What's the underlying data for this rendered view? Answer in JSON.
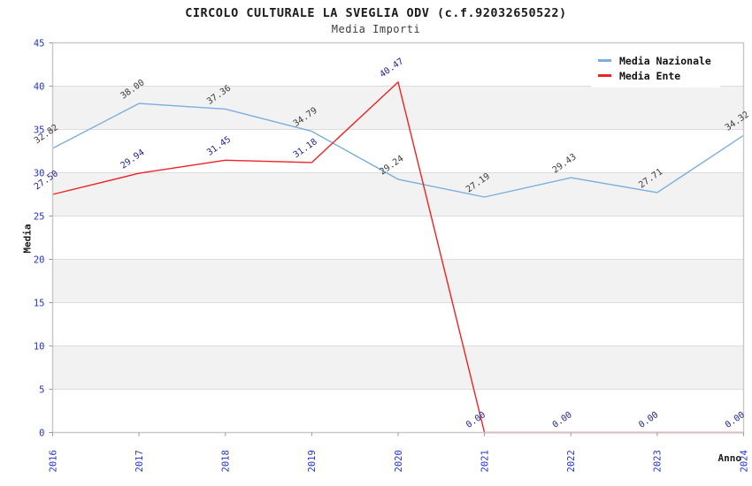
{
  "title": "CIRCOLO CULTURALE LA SVEGLIA ODV (c.f.92032650522)",
  "subtitle": "Media Importi",
  "legend": {
    "items": [
      {
        "label": "Media Nazionale",
        "color": "#7aaede"
      },
      {
        "label": "Media Ente",
        "color": "#ee2222"
      }
    ]
  },
  "chart_data": {
    "type": "line",
    "title": "CIRCOLO CULTURALE LA SVEGLIA ODV (c.f.92032650522)",
    "subtitle": "Media Importi",
    "xlabel": "Anno",
    "ylabel": "Media",
    "x": [
      2016,
      2017,
      2018,
      2019,
      2020,
      2021,
      2022,
      2023,
      2024
    ],
    "series": [
      {
        "name": "Media Nazionale",
        "color": "#7aaede",
        "label_color": "#3a3a3a",
        "values": [
          32.82,
          38.0,
          37.36,
          34.79,
          29.24,
          27.19,
          29.43,
          27.71,
          34.32
        ],
        "labels": [
          "32.82",
          "38.00",
          "37.36",
          "34.79",
          "29.24",
          "27.19",
          "29.43",
          "27.71",
          "34.32"
        ]
      },
      {
        "name": "Media Ente",
        "color": "#ee2222",
        "label_color": "#232392",
        "values": [
          27.5,
          29.94,
          31.45,
          31.18,
          40.47,
          0.0,
          0.0,
          0.0,
          0.0
        ],
        "labels": [
          "27.50",
          "29.94",
          "31.45",
          "31.18",
          "40.47",
          "0.00",
          "0.00",
          "0.00",
          "0.00"
        ]
      }
    ],
    "ylim": [
      0,
      45
    ],
    "ytick_step": 5,
    "yticks": [
      "0",
      "5",
      "10",
      "15",
      "20",
      "25",
      "30",
      "35",
      "40",
      "45"
    ],
    "xticks": [
      "2016",
      "2017",
      "2018",
      "2019",
      "2020",
      "2021",
      "2022",
      "2023",
      "2024"
    ],
    "grid": true,
    "band_color": "#f2f2f2",
    "grid_color": "#dcdcdc",
    "frame_color": "#c9c9c9",
    "tick_label_color": "#2233cc",
    "legend_position": "top-right"
  }
}
